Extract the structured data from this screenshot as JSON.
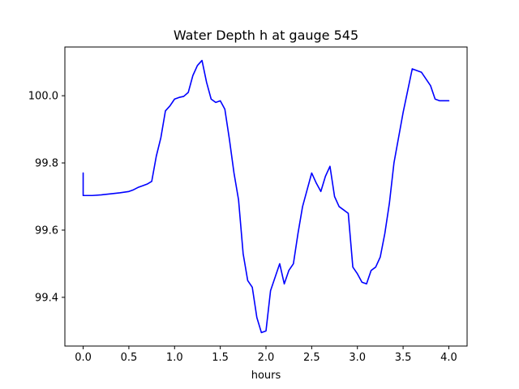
{
  "chart_data": {
    "type": "line",
    "title": "Water Depth h at gauge 545",
    "xlabel": "hours",
    "ylabel": "",
    "xlim": [
      -0.2,
      4.2
    ],
    "ylim": [
      99.255,
      100.145
    ],
    "xticks": [
      0.0,
      0.5,
      1.0,
      1.5,
      2.0,
      2.5,
      3.0,
      3.5,
      4.0
    ],
    "xtick_labels": [
      "0.0",
      "0.5",
      "1.0",
      "1.5",
      "2.0",
      "2.5",
      "3.0",
      "3.5",
      "4.0"
    ],
    "yticks": [
      99.4,
      99.6,
      99.8,
      100.0
    ],
    "ytick_labels": [
      "99.4",
      "99.6",
      "99.8",
      "100.0"
    ],
    "grid": false,
    "series": [
      {
        "color": "#0000ff",
        "x": [
          0.0,
          0.0,
          0.1,
          0.2,
          0.3,
          0.4,
          0.5,
          0.55,
          0.6,
          0.65,
          0.7,
          0.75,
          0.8,
          0.85,
          0.9,
          0.95,
          1.0,
          1.05,
          1.1,
          1.15,
          1.2,
          1.25,
          1.3,
          1.35,
          1.4,
          1.45,
          1.5,
          1.55,
          1.6,
          1.65,
          1.7,
          1.75,
          1.8,
          1.85,
          1.9,
          1.95,
          2.0,
          2.05,
          2.1,
          2.15,
          2.2,
          2.25,
          2.3,
          2.35,
          2.4,
          2.45,
          2.5,
          2.55,
          2.6,
          2.65,
          2.7,
          2.75,
          2.8,
          2.85,
          2.9,
          2.95,
          3.0,
          3.05,
          3.1,
          3.15,
          3.2,
          3.25,
          3.3,
          3.35,
          3.4,
          3.5,
          3.6,
          3.7,
          3.8,
          3.85,
          3.9,
          3.95,
          4.0
        ],
        "y": [
          99.77,
          99.703,
          99.703,
          99.705,
          99.708,
          99.711,
          99.715,
          99.72,
          99.727,
          99.732,
          99.737,
          99.745,
          99.82,
          99.875,
          99.955,
          99.97,
          99.99,
          99.995,
          99.998,
          100.01,
          100.06,
          100.09,
          100.105,
          100.04,
          99.99,
          99.98,
          99.985,
          99.96,
          99.87,
          99.77,
          99.69,
          99.53,
          99.45,
          99.43,
          99.34,
          99.295,
          99.3,
          99.42,
          99.46,
          99.5,
          99.44,
          99.48,
          99.5,
          99.59,
          99.67,
          99.72,
          99.77,
          99.74,
          99.715,
          99.76,
          99.79,
          99.7,
          99.67,
          99.66,
          99.65,
          99.49,
          99.47,
          99.445,
          99.44,
          99.48,
          99.49,
          99.52,
          99.59,
          99.68,
          99.8,
          99.95,
          100.08,
          100.07,
          100.03,
          99.99,
          99.985,
          99.985,
          99.985
        ]
      }
    ]
  }
}
